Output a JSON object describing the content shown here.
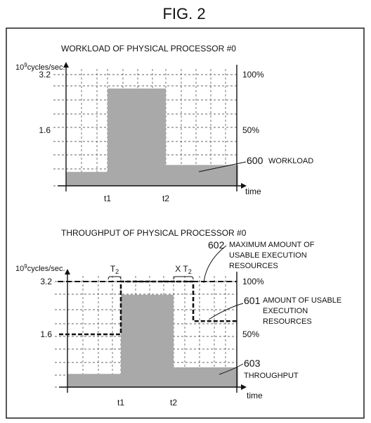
{
  "figure_title": "FIG. 2",
  "chart_data": [
    {
      "type": "area",
      "title": "WORKLOAD OF PHYSICAL PROCESSOR #0",
      "ylabel_base": "10",
      "ylabel_exp": "9",
      "ylabel_rest": "cycles/sec.",
      "xlabel": "time",
      "ylim": [
        0,
        3.2
      ],
      "left_ticks": [
        {
          "value": 3.2,
          "label": "3.2"
        },
        {
          "value": 1.6,
          "label": "1.6"
        }
      ],
      "right_ticks": [
        {
          "value": 3.2,
          "label": "100%"
        },
        {
          "value": 1.6,
          "label": "50%"
        }
      ],
      "x_ticks": [
        {
          "key": "t1",
          "label": "t1"
        },
        {
          "key": "t2",
          "label": "t2"
        }
      ],
      "grid": true,
      "series": [
        {
          "name": "WORKLOAD",
          "ref": "600",
          "color": "#a9a9a9",
          "steps": [
            {
              "from": "start",
              "to": "t1",
              "y": 0.4
            },
            {
              "from": "t1",
              "to": "t2",
              "y": 2.8
            },
            {
              "from": "t2",
              "to": "end",
              "y": 0.6
            }
          ]
        }
      ],
      "annotations": [
        {
          "ref": "600",
          "text": "WORKLOAD"
        }
      ]
    },
    {
      "type": "area",
      "title": "THROUGHPUT OF PHYSICAL PROCESSOR #0",
      "ylabel_base": "10",
      "ylabel_exp": "9",
      "ylabel_rest": "cycles/sec.",
      "xlabel": "time",
      "ylim": [
        0,
        3.2
      ],
      "left_ticks": [
        {
          "value": 3.2,
          "label": "3.2"
        },
        {
          "value": 1.6,
          "label": "1.6"
        }
      ],
      "right_ticks": [
        {
          "value": 3.2,
          "label": "100%"
        },
        {
          "value": 1.6,
          "label": "50%"
        }
      ],
      "x_ticks": [
        {
          "key": "t1",
          "label": "t1"
        },
        {
          "key": "t2",
          "label": "t2"
        }
      ],
      "grid": true,
      "series": [
        {
          "name": "THROUGHPUT",
          "ref": "603",
          "color": "#a9a9a9",
          "steps": [
            {
              "from": "start",
              "to": "t1",
              "y": 0.4
            },
            {
              "from": "t1",
              "to": "t2",
              "y": 2.8
            },
            {
              "from": "t2",
              "to": "end",
              "y": 0.6
            }
          ]
        },
        {
          "name": "MAXIMUM AMOUNT OF USABLE EXECUTION RESOURCES",
          "ref": "602",
          "style": "dashed",
          "value": 3.2
        },
        {
          "name": "AMOUNT OF USABLE EXECUTION RESOURCES",
          "ref": "601",
          "style": "dashed-bold",
          "steps": [
            {
              "from": "start",
              "to": "t1",
              "y": 1.6
            },
            {
              "from": "t1",
              "to": "t2 + X T2",
              "y": 3.2
            },
            {
              "from": "t2 + X T2",
              "to": "end",
              "y": 2.0
            }
          ]
        }
      ],
      "intervals": [
        {
          "label_main": "T",
          "label_sub": "2",
          "from": "t1 - T2",
          "to": "t1"
        },
        {
          "label_main": "X T",
          "label_sub": "2",
          "from": "t2",
          "to": "t2 + X T2"
        }
      ],
      "annotations": [
        {
          "ref": "602",
          "lines": [
            "MAXIMUM AMOUNT OF",
            "USABLE EXECUTION",
            "RESOURCES"
          ]
        },
        {
          "ref": "601",
          "lines": [
            "AMOUNT OF USABLE",
            "EXECUTION",
            "RESOURCES"
          ]
        },
        {
          "ref": "603",
          "lines": [
            "THROUGHPUT"
          ]
        }
      ]
    }
  ]
}
